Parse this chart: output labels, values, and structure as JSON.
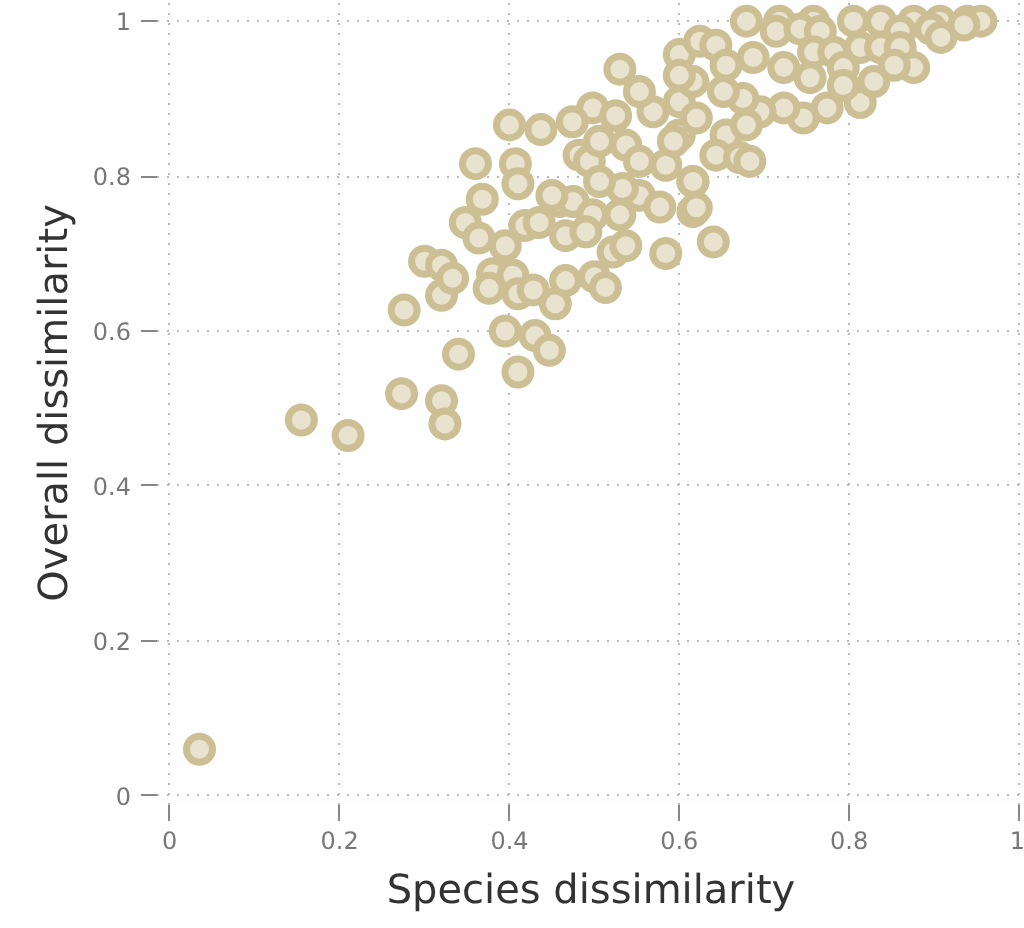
{
  "chart_data": {
    "type": "scatter",
    "xlabel": "Species dissimilarity",
    "ylabel": "Overall dissimilarity",
    "xlim": [
      -0.015,
      1.007
    ],
    "ylim": [
      -0.012,
      1.026
    ],
    "xticks": [
      0,
      0.2,
      0.4,
      0.6,
      0.8,
      1
    ],
    "yticks": [
      0,
      0.2,
      0.4,
      0.6,
      0.8,
      1
    ],
    "grid": true,
    "marker": "circle",
    "series": [
      {
        "color": "#cdbf94",
        "x": [
          0.035,
          0.155,
          0.21,
          0.273,
          0.32,
          0.324,
          0.34,
          0.41,
          0.43,
          0.447,
          0.395,
          0.276,
          0.3,
          0.32,
          0.32,
          0.333,
          0.38,
          0.376,
          0.404,
          0.41,
          0.428,
          0.454,
          0.466,
          0.5,
          0.513,
          0.584,
          0.64,
          0.348,
          0.364,
          0.395,
          0.418,
          0.368,
          0.36,
          0.407,
          0.41,
          0.4,
          0.437,
          0.53,
          0.459,
          0.475,
          0.498,
          0.53,
          0.553,
          0.577,
          0.522,
          0.537,
          0.466,
          0.49,
          0.435,
          0.45,
          0.482,
          0.494,
          0.506,
          0.537,
          0.553,
          0.584,
          0.6,
          0.6,
          0.569,
          0.553,
          0.498,
          0.474,
          0.525,
          0.6,
          0.616,
          0.533,
          0.506,
          0.616,
          0.616,
          0.813,
          0.679,
          0.718,
          0.758,
          0.805,
          0.837,
          0.876,
          0.907,
          0.939,
          0.955,
          0.714,
          0.742,
          0.766,
          0.86,
          0.896,
          0.935,
          0.6,
          0.624,
          0.643,
          0.655,
          0.687,
          0.723,
          0.758,
          0.782,
          0.813,
          0.837,
          0.86,
          0.754,
          0.774,
          0.746,
          0.723,
          0.695,
          0.675,
          0.652,
          0.62,
          0.655,
          0.679,
          0.643,
          0.671,
          0.683,
          0.616,
          0.62,
          0.593,
          0.793,
          0.876,
          0.829,
          0.793,
          0.908,
          0.853
        ],
        "values": [
          0.06,
          0.485,
          0.465,
          0.519,
          0.51,
          0.48,
          0.57,
          0.547,
          0.594,
          0.575,
          0.6,
          0.627,
          0.69,
          0.685,
          0.646,
          0.668,
          0.674,
          0.655,
          0.672,
          0.648,
          0.653,
          0.635,
          0.665,
          0.67,
          0.656,
          0.7,
          0.715,
          0.74,
          0.72,
          0.71,
          0.736,
          0.77,
          0.816,
          0.816,
          0.79,
          0.866,
          0.86,
          0.938,
          0.767,
          0.767,
          0.75,
          0.75,
          0.775,
          0.76,
          0.702,
          0.71,
          0.723,
          0.728,
          0.74,
          0.775,
          0.827,
          0.819,
          0.845,
          0.84,
          0.819,
          0.814,
          0.853,
          0.896,
          0.883,
          0.909,
          0.888,
          0.87,
          0.878,
          0.957,
          0.922,
          0.784,
          0.793,
          0.793,
          0.754,
          0.895,
          1.0,
          1.0,
          1.0,
          1.0,
          1.0,
          1.0,
          1.0,
          1.0,
          1.0,
          0.987,
          0.99,
          0.987,
          0.987,
          0.99,
          0.995,
          0.93,
          0.974,
          0.969,
          0.943,
          0.953,
          0.94,
          0.96,
          0.96,
          0.966,
          0.966,
          0.966,
          0.927,
          0.888,
          0.875,
          0.888,
          0.883,
          0.9,
          0.909,
          0.875,
          0.853,
          0.866,
          0.827,
          0.824,
          0.819,
          0.793,
          0.759,
          0.845,
          0.94,
          0.94,
          0.922,
          0.917,
          0.979,
          0.943
        ]
      }
    ]
  }
}
